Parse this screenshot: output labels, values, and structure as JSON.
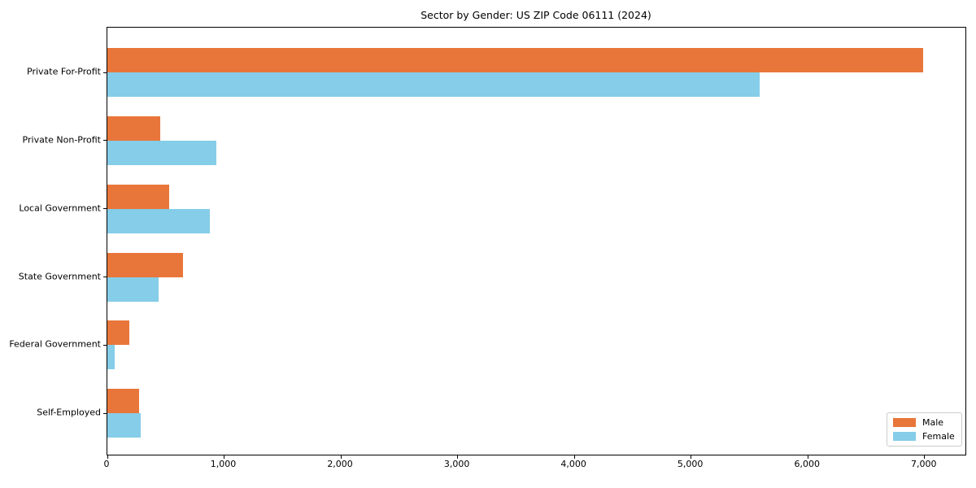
{
  "title": "Sector by Gender: US ZIP Code 06111 (2024)",
  "chart_data": {
    "type": "bar",
    "orientation": "horizontal",
    "title": "Sector by Gender: US ZIP Code 06111 (2024)",
    "xlabel": "",
    "ylabel": "",
    "categories": [
      "Private For-Profit",
      "Private Non-Profit",
      "Local Government",
      "State Government",
      "Federal Government",
      "Self-Employed"
    ],
    "series": [
      {
        "name": "Male",
        "color": "#E8763A",
        "values": [
          6990,
          450,
          530,
          650,
          190,
          270
        ]
      },
      {
        "name": "Female",
        "color": "#85CDE8",
        "values": [
          5590,
          935,
          875,
          440,
          60,
          285
        ]
      }
    ],
    "xlim": [
      0,
      7350
    ],
    "xticks": [
      0,
      1000,
      2000,
      3000,
      4000,
      5000,
      6000,
      7000
    ],
    "xtick_labels": [
      "0",
      "1,000",
      "2,000",
      "3,000",
      "4,000",
      "5,000",
      "6,000",
      "7,000"
    ],
    "grid": false,
    "legend_position": "lower right",
    "colors": {
      "male": "#E8763A",
      "female": "#85CDE8",
      "spine": "#000000",
      "legend_border": "#cccccc",
      "background": "#ffffff",
      "text": "#000000"
    }
  }
}
